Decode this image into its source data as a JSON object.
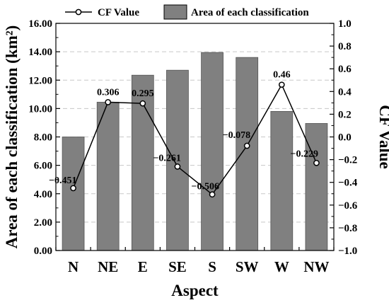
{
  "chart_data": {
    "type": "bar+line",
    "categories": [
      "N",
      "NE",
      "E",
      "SE",
      "S",
      "SW",
      "W",
      "NW"
    ],
    "series": [
      {
        "name": "Area of each classification",
        "type": "bar",
        "axis": "left",
        "color": "#808080",
        "values": [
          8.0,
          10.45,
          12.35,
          12.7,
          13.95,
          13.6,
          9.8,
          8.95
        ]
      },
      {
        "name": "CF Value",
        "type": "line",
        "axis": "right",
        "color": "#000000",
        "marker_fill": "#ffffff",
        "values": [
          -0.451,
          0.306,
          0.295,
          -0.261,
          -0.506,
          -0.078,
          0.46,
          -0.229
        ],
        "labels": [
          "−0.451",
          "0.306",
          "0.295",
          "−0.261",
          "−0.506",
          "−0.078",
          "0.46",
          "−0.229"
        ]
      }
    ],
    "xlabel": "Aspect",
    "ylabel_left": "Area of each classification (km²)",
    "ylabel_right": "CF Value",
    "ylim_left": [
      0,
      16
    ],
    "ylim_right": [
      -1.0,
      1.0
    ],
    "yticks_left": [
      "0.00",
      "2.00",
      "4.00",
      "6.00",
      "8.00",
      "10.00",
      "12.00",
      "14.00",
      "16.00"
    ],
    "yticks_right": [
      "−1.0",
      "−0.8",
      "−0.6",
      "−0.4",
      "−0.2",
      "0.0",
      "0.2",
      "0.4",
      "0.6",
      "0.8",
      "1.0"
    ],
    "grid": "horizontal dashed",
    "legend": {
      "position": "top",
      "items": [
        "CF Value",
        "Area of each classification"
      ]
    }
  }
}
